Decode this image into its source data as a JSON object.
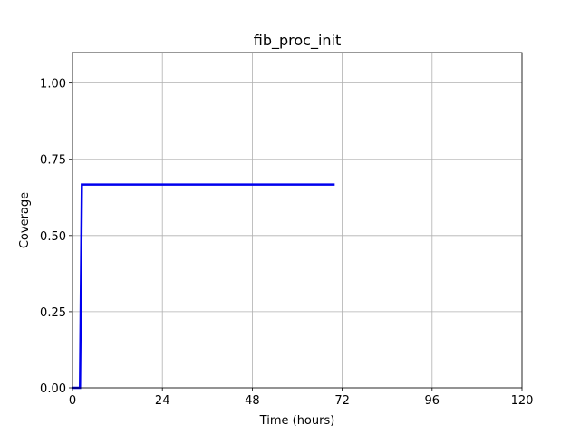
{
  "chart_data": {
    "type": "line",
    "title": "fib_proc_init",
    "xlabel": "Time (hours)",
    "ylabel": "Coverage",
    "xlim": [
      0,
      120
    ],
    "ylim": [
      0,
      1.1
    ],
    "xticks": [
      0,
      24,
      48,
      72,
      96,
      120
    ],
    "xtick_labels": [
      "0",
      "24",
      "48",
      "72",
      "96",
      "120"
    ],
    "yticks": [
      0,
      0.25,
      0.5,
      0.75,
      1.0
    ],
    "ytick_labels": [
      "0.00",
      "0.25",
      "0.50",
      "0.75",
      "1.00"
    ],
    "grid": true,
    "series": [
      {
        "name": "coverage",
        "color": "#0000ee",
        "x": [
          0,
          2,
          2.5,
          70
        ],
        "y": [
          0,
          0,
          0.667,
          0.667
        ]
      }
    ]
  }
}
